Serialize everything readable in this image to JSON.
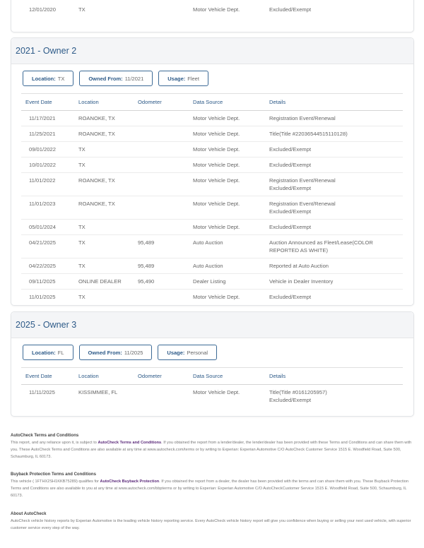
{
  "columns": [
    "Event Date",
    "Location",
    "Odometer",
    "Data Source",
    "Details"
  ],
  "prev_owner": {
    "rows": [
      {
        "date": "12/01/2020",
        "location": "TX",
        "odometer": "",
        "source": "Motor Vehicle Dept.",
        "details": "Excluded/Exempt"
      }
    ]
  },
  "owners": [
    {
      "title": "2021 - Owner  2",
      "location_label": "Location:",
      "location": "TX",
      "owned_label": "Owned From:",
      "owned": "11/2021",
      "usage_label": "Usage:",
      "usage": "Fleet",
      "rows": [
        {
          "date": "11/17/2021",
          "location": "ROANOKE, TX",
          "odometer": "",
          "source": "Motor Vehicle Dept.",
          "details": "Registration Event/Renewal"
        },
        {
          "date": "11/25/2021",
          "location": "ROANOKE, TX",
          "odometer": "",
          "source": "Motor Vehicle Dept.",
          "details": "Title(Title #22036544515110128)"
        },
        {
          "date": "09/01/2022",
          "location": "TX",
          "odometer": "",
          "source": "Motor Vehicle Dept.",
          "details": "Excluded/Exempt"
        },
        {
          "date": "10/01/2022",
          "location": "TX",
          "odometer": "",
          "source": "Motor Vehicle Dept.",
          "details": "Excluded/Exempt"
        },
        {
          "date": "11/01/2022",
          "location": "ROANOKE, TX",
          "odometer": "",
          "source": "Motor Vehicle Dept.",
          "details": "Registration Event/Renewal",
          "details2": "Excluded/Exempt"
        },
        {
          "date": "11/01/2023",
          "location": "ROANOKE, TX",
          "odometer": "",
          "source": "Motor Vehicle Dept.",
          "details": "Registration Event/Renewal",
          "details2": "Excluded/Exempt"
        },
        {
          "date": "05/01/2024",
          "location": "TX",
          "odometer": "",
          "source": "Motor Vehicle Dept.",
          "details": "Excluded/Exempt"
        },
        {
          "date": "04/21/2025",
          "location": "TX",
          "odometer": "95,489",
          "source": "Auto Auction",
          "details": "Auction Announced as Fleet/Lease(COLOR",
          "details2": "REPORTED AS WHITE)"
        },
        {
          "date": "04/22/2025",
          "location": "TX",
          "odometer": "95,489",
          "source": "Auto Auction",
          "details": "Reported at Auto Auction"
        },
        {
          "date": "09/11/2025",
          "location": "ONLINE DEALER",
          "odometer": "95,490",
          "source": "Dealer Listing",
          "details": "Vehicle in Dealer Inventory"
        },
        {
          "date": "11/01/2025",
          "location": "TX",
          "odometer": "",
          "source": "Motor Vehicle Dept.",
          "details": "Excluded/Exempt"
        }
      ]
    },
    {
      "title": "2025 - Owner  3",
      "location_label": "Location:",
      "location": "FL",
      "owned_label": "Owned From:",
      "owned": "11/2025",
      "usage_label": "Usage:",
      "usage": "Personal",
      "rows": [
        {
          "date": "11/11/2025",
          "location": "KISSIMMEE, FL",
          "odometer": "",
          "source": "Motor Vehicle Dept.",
          "details": "Title(Title #0161205957)",
          "details2": "Excluded/Exempt"
        }
      ]
    }
  ],
  "footer": {
    "terms": {
      "heading": "AutoCheck Terms and Conditions",
      "pre": "This report, and any reliance upon it, is subject to ",
      "link": "AutoCheck Terms and Conditions",
      "post": ". If you obtained the report from a lender/dealer, the lender/dealer has been provided with these Terms and Conditions and can share them with you. These AutoCheck Terms and Conditions are also available at any time at www.autocheck.com/terms or by writing to Experian: Experian Automotive C/O AutoCheck Customer Service 1515 E. Woodfield Road, Suite 500, Schaumburg, IL 60173."
    },
    "buyback": {
      "heading": "Buyback Protection Terms and Conditions",
      "pre": "This vehicle ( 1FTHX2SH1KKB75289) qualifies for ",
      "link": "AutoCheck Buyback Protection",
      "post": ". If you obtained the report from a dealer, the dealer has been provided with the terms and can share them with you. These Buyback Protection Terms and Conditions are also available to you at any time at www.autocheck.com/bbpterms or by writing to Experian: Experian Automotive C/O AutoCheckCustomer Service 1515 E. Woodfield Road, Suite 500, Schaumburg, IL 60173."
    },
    "about": {
      "heading": "About AutoCheck",
      "text": "AutoCheck vehicle history reports by Experian Automotive is the leading vehicle history reporting service. Every AutoCheck vehicle history report will give you confidence when buying or selling your next used vehicle, with superior customer service every step of the way."
    }
  }
}
